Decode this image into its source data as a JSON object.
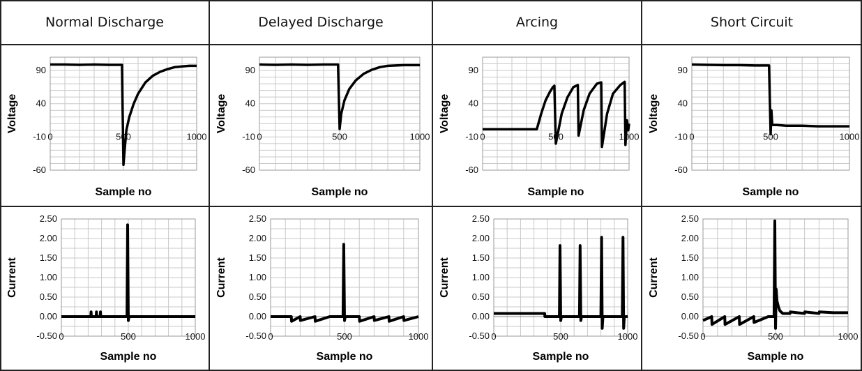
{
  "headers": [
    "Normal Discharge",
    "Delayed Discharge",
    "Arcing",
    "Short Circuit"
  ],
  "chart_data": [
    {
      "type": "line",
      "title": "Normal Discharge",
      "quantity": "voltage",
      "xlabel": "Sample no",
      "ylabel": "Voltage",
      "xlim": [
        0,
        1000
      ],
      "ylim": [
        -60,
        110
      ],
      "yticks": [
        "90",
        "40",
        "-10",
        "-60"
      ],
      "ytick_values": [
        90,
        40,
        -10,
        -60
      ],
      "xticks": [
        "0",
        "500",
        "1000"
      ],
      "xtick_values": [
        0,
        500,
        1000
      ],
      "series": [
        {
          "name": "Voltage",
          "x": [
            0,
            100,
            200,
            300,
            400,
            490,
            500,
            510,
            520,
            540,
            570,
            600,
            650,
            700,
            750,
            800,
            850,
            900,
            950,
            1000
          ],
          "y": [
            99,
            99,
            98.5,
            99,
            98.5,
            98.5,
            -52,
            -25,
            0,
            20,
            40,
            55,
            72,
            82,
            88,
            92,
            95,
            96,
            97,
            97
          ]
        }
      ]
    },
    {
      "type": "line",
      "title": "Delayed Discharge",
      "quantity": "voltage",
      "xlabel": "Sample no",
      "ylabel": "Voltage",
      "xlim": [
        0,
        1000
      ],
      "ylim": [
        -60,
        110
      ],
      "yticks": [
        "90",
        "40",
        "-10",
        "-60"
      ],
      "ytick_values": [
        90,
        40,
        -10,
        -60
      ],
      "xticks": [
        "0",
        "500",
        "1000"
      ],
      "xtick_values": [
        0,
        500,
        1000
      ],
      "series": [
        {
          "name": "Voltage",
          "x": [
            0,
            100,
            200,
            300,
            400,
            490,
            500,
            510,
            530,
            560,
            600,
            650,
            700,
            750,
            800,
            900,
            1000
          ],
          "y": [
            99,
            98.5,
            99,
            98.5,
            99,
            99,
            2,
            25,
            45,
            62,
            75,
            85,
            91,
            95,
            97,
            98,
            98
          ]
        }
      ]
    },
    {
      "type": "line",
      "title": "Arcing",
      "quantity": "voltage",
      "xlabel": "Sample no",
      "ylabel": "Voltage",
      "xlim": [
        0,
        1000
      ],
      "ylim": [
        -60,
        110
      ],
      "yticks": [
        "90",
        "40",
        "-10",
        "-60"
      ],
      "ytick_values": [
        90,
        40,
        -10,
        -60
      ],
      "xticks": [
        "0",
        "500",
        "1000"
      ],
      "xtick_values": [
        0,
        500,
        1000
      ],
      "series": [
        {
          "name": "Voltage",
          "x": [
            0,
            100,
            200,
            300,
            370,
            400,
            430,
            460,
            480,
            490,
            500,
            540,
            580,
            620,
            650,
            655,
            690,
            730,
            780,
            810,
            815,
            850,
            890,
            940,
            970,
            975,
            985,
            995,
            1000
          ],
          "y": [
            1.5,
            1.5,
            1.5,
            1.5,
            1.5,
            25,
            45,
            58,
            65,
            67,
            -20,
            25,
            50,
            65,
            68,
            -8,
            30,
            55,
            70,
            72,
            -25,
            25,
            55,
            68,
            73,
            -22,
            15,
            0,
            10
          ]
        }
      ]
    },
    {
      "type": "line",
      "title": "Short Circuit",
      "quantity": "voltage",
      "xlabel": "Sample no",
      "ylabel": "Voltage",
      "xlim": [
        0,
        1000
      ],
      "ylim": [
        -60,
        110
      ],
      "yticks": [
        "90",
        "40",
        "-10",
        "-60"
      ],
      "ytick_values": [
        90,
        40,
        -10,
        -60
      ],
      "xticks": [
        "0",
        "500",
        "1000"
      ],
      "xtick_values": [
        0,
        500,
        1000
      ],
      "series": [
        {
          "name": "Voltage",
          "x": [
            0,
            100,
            200,
            300,
            400,
            490,
            500,
            505,
            510,
            520,
            540,
            600,
            700,
            800,
            900,
            1000
          ],
          "y": [
            99,
            98.5,
            98,
            98,
            97.5,
            97.5,
            -6,
            30,
            8,
            8,
            8,
            7,
            7,
            6,
            6,
            6
          ]
        }
      ]
    },
    {
      "type": "line",
      "title": "Normal Discharge",
      "quantity": "current",
      "xlabel": "Sample no",
      "ylabel": "Current",
      "xlim": [
        0,
        1000
      ],
      "ylim": [
        -0.5,
        2.5
      ],
      "yticks": [
        "2.50",
        "2.00",
        "1.50",
        "1.00",
        "0.50",
        "0.00",
        "-0.50"
      ],
      "ytick_values": [
        2.5,
        2.0,
        1.5,
        1.0,
        0.5,
        0.0,
        -0.5
      ],
      "xticks": [
        "0",
        "500",
        "1000"
      ],
      "xtick_values": [
        0,
        500,
        1000
      ],
      "series": [
        {
          "name": "Current",
          "x": [
            0,
            220,
            222,
            224,
            260,
            262,
            264,
            290,
            292,
            294,
            490,
            495,
            500,
            505,
            510,
            1000
          ],
          "y": [
            0,
            0,
            0.12,
            0,
            0,
            0.12,
            0,
            0,
            0.12,
            0,
            0,
            2.35,
            -0.1,
            0,
            0,
            0
          ]
        }
      ]
    },
    {
      "type": "line",
      "title": "Delayed Discharge",
      "quantity": "current",
      "xlabel": "Sample no",
      "ylabel": "Current",
      "xlim": [
        0,
        1000
      ],
      "ylim": [
        -0.5,
        2.5
      ],
      "yticks": [
        "2.50",
        "2.00",
        "1.50",
        "1.00",
        "0.50",
        "0.00",
        "-0.50"
      ],
      "ytick_values": [
        2.5,
        2.0,
        1.5,
        1.0,
        0.5,
        0.0,
        -0.5
      ],
      "xticks": [
        "0",
        "500",
        "1000"
      ],
      "xtick_values": [
        0,
        500,
        1000
      ],
      "series": [
        {
          "name": "Current",
          "x": [
            0,
            140,
            142,
            200,
            202,
            300,
            302,
            400,
            490,
            495,
            500,
            505,
            600,
            602,
            700,
            702,
            800,
            802,
            900,
            902,
            1000
          ],
          "y": [
            0,
            0,
            -0.12,
            0,
            -0.1,
            0,
            -0.12,
            0,
            0,
            1.85,
            -0.1,
            0,
            0,
            -0.12,
            0,
            -0.1,
            0,
            -0.12,
            0,
            -0.1,
            0
          ]
        }
      ]
    },
    {
      "type": "line",
      "title": "Arcing",
      "quantity": "current",
      "xlabel": "Sample no",
      "ylabel": "Current",
      "xlim": [
        0,
        1000
      ],
      "ylim": [
        -0.5,
        2.5
      ],
      "yticks": [
        "2.50",
        "2.00",
        "1.50",
        "1.00",
        "0.50",
        "0.00",
        "-0.50"
      ],
      "ytick_values": [
        2.5,
        2.0,
        1.5,
        1.0,
        0.5,
        0.0,
        -0.5
      ],
      "xticks": [
        "0",
        "500",
        "1000"
      ],
      "xtick_values": [
        0,
        500,
        1000
      ],
      "series": [
        {
          "name": "Current",
          "x": [
            0,
            380,
            382,
            470,
            490,
            495,
            500,
            505,
            640,
            645,
            650,
            655,
            800,
            805,
            810,
            815,
            960,
            965,
            970,
            975,
            1000
          ],
          "y": [
            0.08,
            0.08,
            0,
            0,
            0,
            1.82,
            -0.1,
            0,
            0,
            1.82,
            -0.1,
            0,
            0,
            2.03,
            -0.3,
            0,
            0,
            2.03,
            -0.3,
            0,
            0
          ]
        }
      ]
    },
    {
      "type": "line",
      "title": "Short Circuit",
      "quantity": "current",
      "xlabel": "Sample no",
      "ylabel": "Current",
      "xlim": [
        0,
        1000
      ],
      "ylim": [
        -0.5,
        2.5
      ],
      "yticks": [
        "2.50",
        "2.00",
        "1.50",
        "1.00",
        "0.50",
        "0.00",
        "-0.50"
      ],
      "ytick_values": [
        2.5,
        2.0,
        1.5,
        1.0,
        0.5,
        0.0,
        -0.5
      ],
      "xticks": [
        "0",
        "500",
        "1000"
      ],
      "xtick_values": [
        0,
        500,
        1000
      ],
      "series": [
        {
          "name": "Current",
          "x": [
            0,
            60,
            62,
            150,
            152,
            250,
            252,
            350,
            352,
            450,
            490,
            495,
            500,
            505,
            510,
            520,
            530,
            550,
            600,
            602,
            700,
            702,
            800,
            802,
            900,
            1000
          ],
          "y": [
            -0.1,
            0,
            -0.2,
            0,
            -0.2,
            0,
            -0.2,
            0,
            -0.15,
            0,
            0,
            2.45,
            -0.3,
            0.7,
            0.4,
            0.25,
            0.15,
            0.08,
            0.08,
            0.12,
            0.08,
            0.12,
            0.08,
            0.12,
            0.1,
            0.1
          ]
        }
      ]
    }
  ]
}
